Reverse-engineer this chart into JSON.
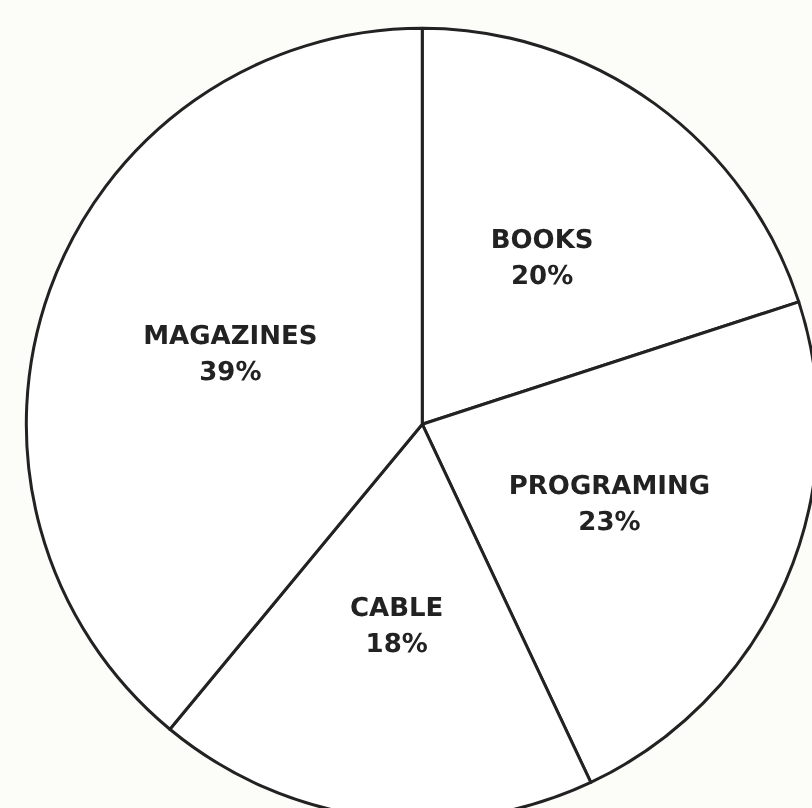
{
  "chart_data": {
    "type": "pie",
    "categories": [
      "BOOKS",
      "PROGRAMING",
      "CABLE",
      "MAGAZINES"
    ],
    "values": [
      20,
      23,
      18,
      39
    ],
    "value_labels": [
      "20%",
      "23%",
      "18%",
      "39%"
    ],
    "colors": [
      "#ffffff",
      "#ffffff",
      "#ffffff",
      "#ffffff"
    ]
  }
}
